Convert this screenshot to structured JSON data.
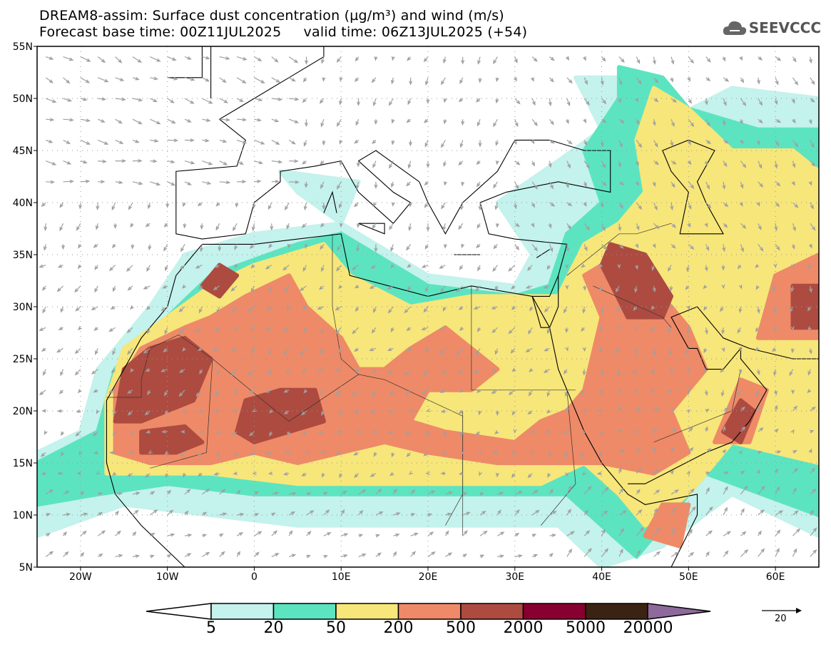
{
  "title": {
    "line1": "DREAM8-assim: Surface dust concentration (µg/m³) and wind (m/s)",
    "line2": "Forecast base time: 00Z11JUL2025     valid time: 06Z13JUL2025 (+54)"
  },
  "logo": {
    "text": "SEEVCCC",
    "icon": "cloud-icon"
  },
  "axes": {
    "lat_labels": [
      "55N",
      "50N",
      "45N",
      "40N",
      "35N",
      "30N",
      "25N",
      "20N",
      "15N",
      "10N",
      "5N"
    ],
    "lat_values": [
      55,
      50,
      45,
      40,
      35,
      30,
      25,
      20,
      15,
      10,
      5
    ],
    "lon_labels": [
      "20W",
      "10W",
      "0",
      "10E",
      "20E",
      "30E",
      "40E",
      "50E",
      "60E"
    ],
    "lon_values": [
      -20,
      -10,
      0,
      10,
      20,
      30,
      40,
      50,
      60
    ],
    "lon_range": [
      -25,
      65
    ],
    "lat_range": [
      5,
      55
    ]
  },
  "legend": {
    "labels": [
      "5",
      "20",
      "50",
      "200",
      "500",
      "2000",
      "5000",
      "20000"
    ],
    "colors": [
      "#c4f2ec",
      "#5ce4c0",
      "#f7e67a",
      "#ee8a68",
      "#ad4b40",
      "#870030",
      "#3b2313",
      "#8e6a9c"
    ]
  },
  "wind_reference": {
    "value": "20"
  }
}
